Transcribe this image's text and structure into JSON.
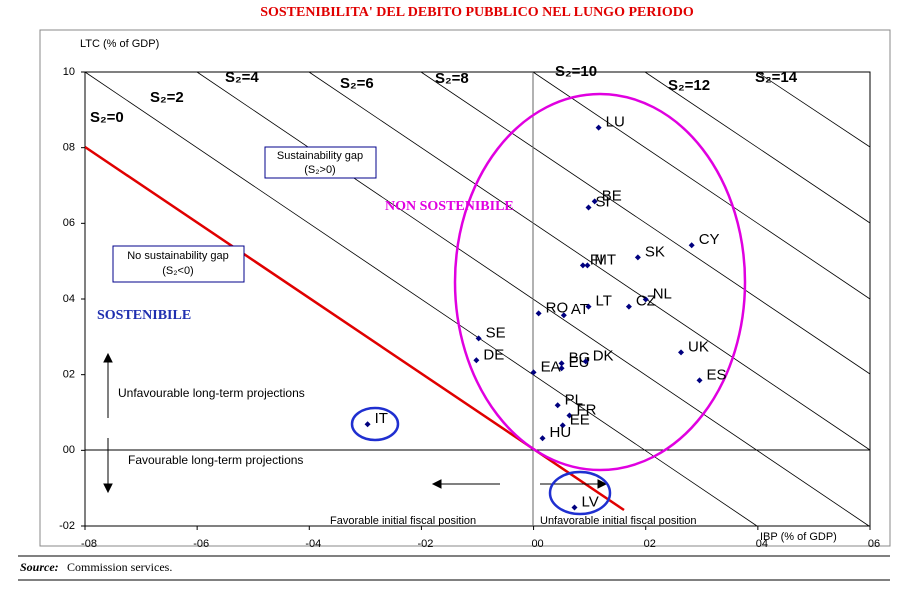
{
  "chart_data": {
    "type": "scatter",
    "title": "SOSTENIBILITA' DEL DEBITO PUBBLICO NEL LUNGO PERIODO",
    "y_label": "LTC (% of GDP)",
    "x_label": "IBP (% of GDP)",
    "labels": [
      "LU",
      "BE",
      "SI",
      "FI",
      "MT",
      "SK",
      "CY",
      "NL",
      "CZ",
      "RO",
      "AT",
      "LT",
      "SE",
      "DE",
      "BG",
      "EU",
      "DK",
      "UK",
      "ES",
      "EA",
      "PL",
      "FR",
      "EE",
      "HU",
      "IT",
      "LV"
    ],
    "x": [
      0.0116,
      0.0109,
      0.0098,
      0.0088,
      0.0096,
      0.0186,
      0.0282,
      0.02,
      0.017,
      0.0009,
      0.0054,
      0.0098,
      -0.0098,
      -0.0102,
      0.005,
      0.005,
      0.0093,
      0.0263,
      0.0296,
      0.0,
      0.0043,
      0.0064,
      0.0052,
      0.0016,
      -0.0296,
      0.0073
    ],
    "values": [
      0.0853,
      0.0658,
      0.0642,
      0.0489,
      0.0489,
      0.051,
      0.0542,
      0.0399,
      0.038,
      0.0362,
      0.0357,
      0.038,
      0.0296,
      0.0238,
      0.023,
      0.0217,
      0.0235,
      0.0259,
      0.0185,
      0.0206,
      0.0119,
      0.0092,
      0.0066,
      0.0032,
      0.0069,
      -0.0151
    ],
    "color": "#00007f",
    "xlim": [
      -0.08,
      0.06
    ],
    "ylim": [
      -0.02,
      0.1
    ],
    "xticks": [
      {
        "value": -0.08,
        "label": "-08"
      },
      {
        "value": -0.06,
        "label": "-06"
      },
      {
        "value": -0.04,
        "label": "-04"
      },
      {
        "value": -0.02,
        "label": "-02"
      },
      {
        "value": 0,
        "label": "00"
      },
      {
        "value": 0.02,
        "label": "02"
      },
      {
        "value": 0.04,
        "label": "04"
      },
      {
        "value": 0.06,
        "label": "06"
      }
    ],
    "yticks": [
      {
        "value": -0.02,
        "label": "-02"
      },
      {
        "value": 0,
        "label": "00"
      },
      {
        "value": 0.02,
        "label": "02"
      },
      {
        "value": 0.04,
        "label": "04"
      },
      {
        "value": 0.06,
        "label": "06"
      },
      {
        "value": 0.08,
        "label": "08"
      },
      {
        "value": 0.1,
        "label": "10"
      }
    ],
    "annotations": {
      "s2": [
        "S₂=0",
        "S₂=2",
        "S₂=4",
        "S₂=6",
        "S₂=8",
        "S₂=10",
        "S₂=12",
        "S₂=14"
      ],
      "gap": [
        "Sustainability gap",
        "(S₂>0)"
      ],
      "no_gap": [
        "No sustainability gap",
        "(S₂<0)"
      ],
      "non_sostenibile": "NON SOSTENIBILE",
      "sostenibile": "SOSTENIBILE",
      "unfavourable_lt": "Unfavourable long-term projections",
      "favourable_lt": "Favourable long-term projections",
      "favorable_fiscal": "Favorable initial fiscal position",
      "unfavorable_fiscal": "Unfavorable initial fiscal position"
    },
    "source_label": "Source:",
    "source": "Commission services."
  }
}
